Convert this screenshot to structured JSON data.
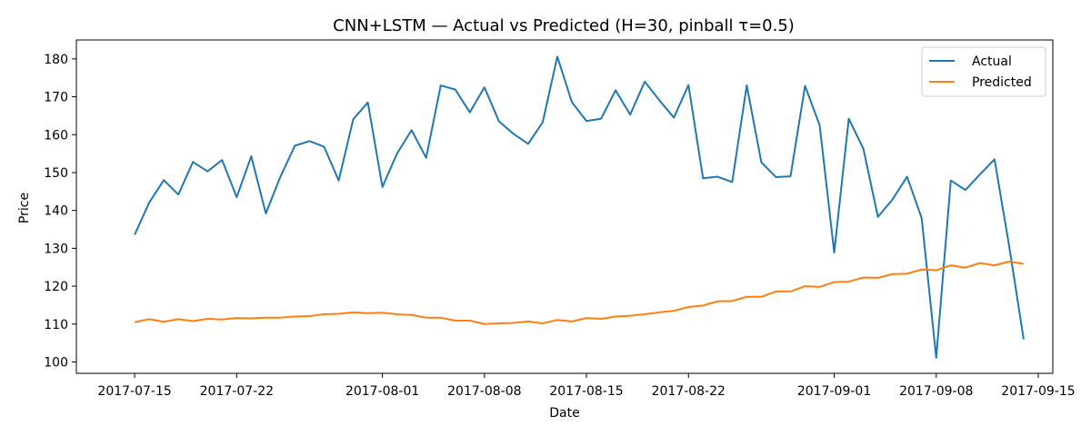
{
  "chart_data": {
    "type": "line",
    "title": "CNN+LSTM — Actual vs Predicted (H=30, pinball τ=0.5)",
    "xlabel": "Date",
    "ylabel": "Price",
    "x_ticks": [
      "2017-07-15",
      "2017-07-22",
      "2017-08-01",
      "2017-08-08",
      "2017-08-15",
      "2017-08-22",
      "2017-09-01",
      "2017-09-08",
      "2017-09-15"
    ],
    "y_ticks": [
      100,
      110,
      120,
      130,
      140,
      150,
      160,
      170,
      180
    ],
    "xlim": [
      "2017-07-11",
      "2017-09-16"
    ],
    "ylim": [
      97,
      185
    ],
    "grid": false,
    "legend_position": "top-right",
    "colors": {
      "actual": "#1f77b4",
      "predicted": "#ff7f0e"
    },
    "dates": [
      "2017-07-15",
      "2017-07-16",
      "2017-07-17",
      "2017-07-18",
      "2017-07-19",
      "2017-07-20",
      "2017-07-21",
      "2017-07-22",
      "2017-07-23",
      "2017-07-24",
      "2017-07-25",
      "2017-07-26",
      "2017-07-27",
      "2017-07-28",
      "2017-07-29",
      "2017-07-30",
      "2017-07-31",
      "2017-08-01",
      "2017-08-02",
      "2017-08-03",
      "2017-08-04",
      "2017-08-05",
      "2017-08-06",
      "2017-08-07",
      "2017-08-08",
      "2017-08-09",
      "2017-08-10",
      "2017-08-11",
      "2017-08-12",
      "2017-08-13",
      "2017-08-14",
      "2017-08-15",
      "2017-08-16",
      "2017-08-17",
      "2017-08-18",
      "2017-08-19",
      "2017-08-20",
      "2017-08-21",
      "2017-08-22",
      "2017-08-23",
      "2017-08-24",
      "2017-08-25",
      "2017-08-26",
      "2017-08-27",
      "2017-08-28",
      "2017-08-29",
      "2017-08-30",
      "2017-08-31",
      "2017-09-01",
      "2017-09-02",
      "2017-09-03",
      "2017-09-04",
      "2017-09-05",
      "2017-09-06",
      "2017-09-07",
      "2017-09-08",
      "2017-09-09",
      "2017-09-10",
      "2017-09-11",
      "2017-09-12",
      "2017-09-13",
      "2017-09-14"
    ],
    "series": [
      {
        "name": "Actual",
        "values": [
          133.6,
          142.1,
          148.0,
          144.2,
          152.8,
          150.3,
          153.3,
          143.5,
          154.3,
          139.2,
          148.9,
          157.1,
          158.3,
          156.8,
          147.9,
          164.1,
          168.5,
          146.2,
          155.0,
          161.2,
          153.9,
          173.0,
          171.9,
          165.9,
          172.5,
          163.5,
          160.2,
          157.6,
          163.3,
          180.6,
          168.6,
          163.6,
          164.2,
          171.7,
          165.3,
          174.0,
          169.1,
          164.5,
          173.1,
          148.5,
          148.9,
          147.5,
          173.0,
          152.7,
          148.8,
          149.0,
          172.9,
          162.5,
          128.9,
          164.2,
          156.3,
          138.3,
          142.9,
          148.9,
          138.0,
          101.1,
          147.9,
          145.4,
          149.5,
          153.5,
          130.7,
          106.0
        ]
      },
      {
        "name": "Predicted",
        "values": [
          110.5,
          111.3,
          110.6,
          111.3,
          110.8,
          111.4,
          111.2,
          111.6,
          111.5,
          111.7,
          111.7,
          112.0,
          112.1,
          112.6,
          112.7,
          113.1,
          112.9,
          113.0,
          112.6,
          112.4,
          111.7,
          111.7,
          110.9,
          110.9,
          110.0,
          110.2,
          110.3,
          110.7,
          110.2,
          111.1,
          110.7,
          111.6,
          111.4,
          112.0,
          112.2,
          112.6,
          113.1,
          113.5,
          114.5,
          114.9,
          116.0,
          116.1,
          117.2,
          117.2,
          118.6,
          118.6,
          120.0,
          119.8,
          121.1,
          121.2,
          122.3,
          122.2,
          123.2,
          123.3,
          124.4,
          124.2,
          125.5,
          124.9,
          126.1,
          125.5,
          126.5,
          125.9
        ]
      }
    ]
  }
}
